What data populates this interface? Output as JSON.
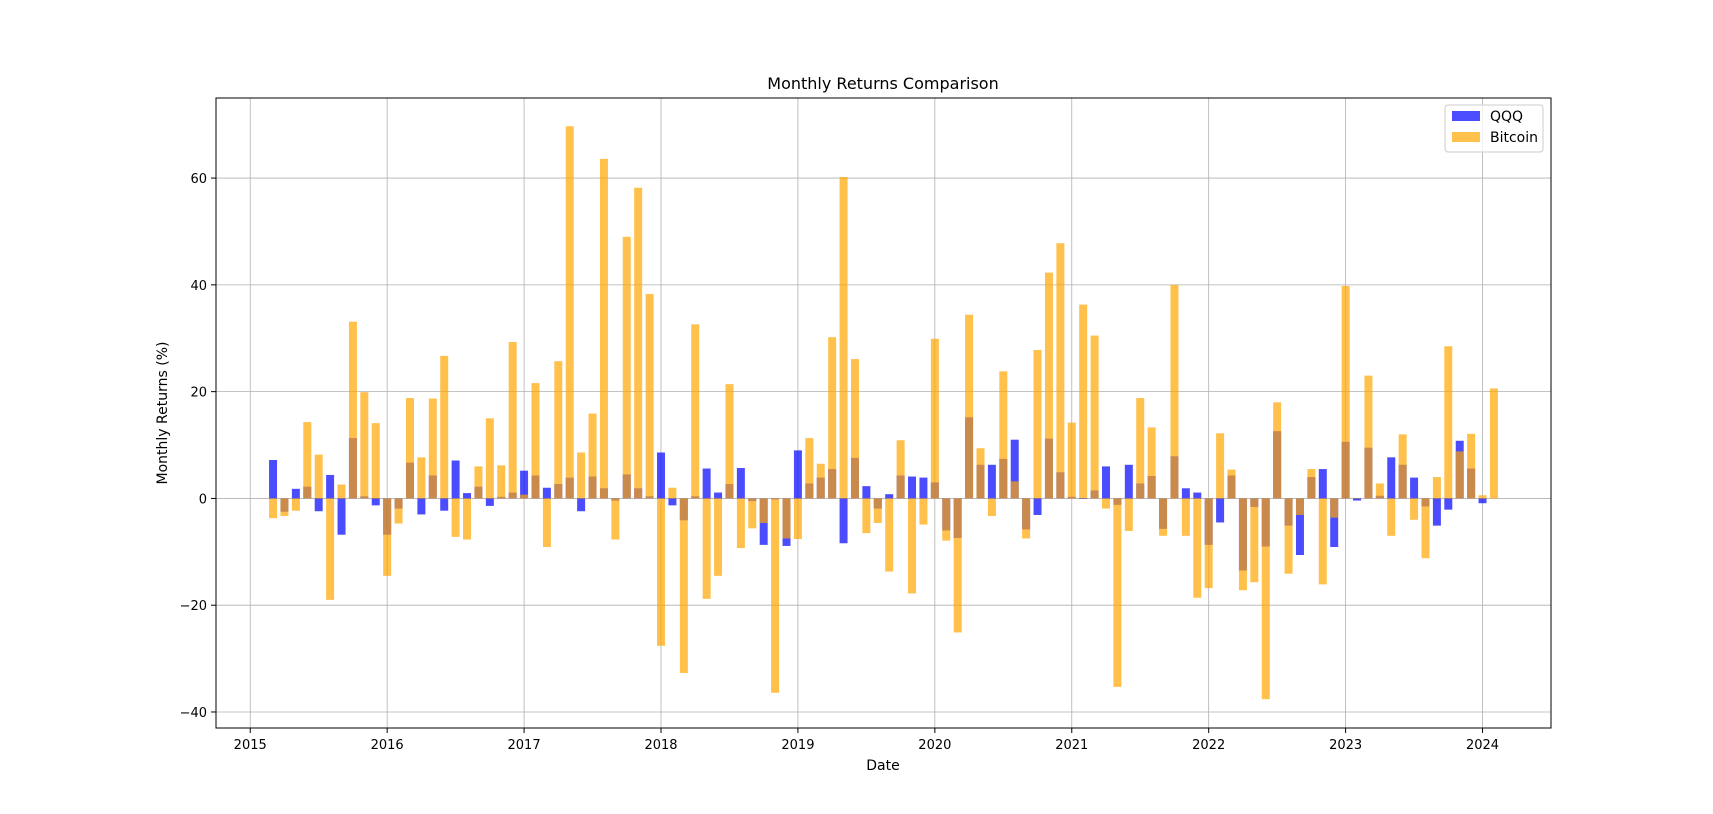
{
  "chart_data": {
    "type": "bar",
    "title": "Monthly Returns Comparison",
    "xlabel": "Date",
    "ylabel": "Monthly Returns (%)",
    "grid": true,
    "legend_position": "top-right",
    "x_tick_labels": [
      "2015",
      "2016",
      "2017",
      "2018",
      "2019",
      "2020",
      "2021",
      "2022",
      "2023",
      "2024"
    ],
    "y_ticks": [
      -40,
      -20,
      0,
      20,
      40,
      60
    ],
    "xlim": [
      "2014-10",
      "2024-07"
    ],
    "ylim": [
      -43,
      75
    ],
    "x": [
      "2015-03",
      "2015-04",
      "2015-05",
      "2015-06",
      "2015-07",
      "2015-08",
      "2015-09",
      "2015-10",
      "2015-11",
      "2015-12",
      "2016-01",
      "2016-02",
      "2016-03",
      "2016-04",
      "2016-05",
      "2016-06",
      "2016-07",
      "2016-08",
      "2016-09",
      "2016-10",
      "2016-11",
      "2016-12",
      "2017-01",
      "2017-02",
      "2017-03",
      "2017-04",
      "2017-05",
      "2017-06",
      "2017-07",
      "2017-08",
      "2017-09",
      "2017-10",
      "2017-11",
      "2017-12",
      "2018-01",
      "2018-02",
      "2018-03",
      "2018-04",
      "2018-05",
      "2018-06",
      "2018-07",
      "2018-08",
      "2018-09",
      "2018-10",
      "2018-11",
      "2018-12",
      "2019-01",
      "2019-02",
      "2019-03",
      "2019-04",
      "2019-05",
      "2019-06",
      "2019-07",
      "2019-08",
      "2019-09",
      "2019-10",
      "2019-11",
      "2019-12",
      "2020-01",
      "2020-02",
      "2020-03",
      "2020-04",
      "2020-05",
      "2020-06",
      "2020-07",
      "2020-08",
      "2020-09",
      "2020-10",
      "2020-11",
      "2020-12",
      "2021-01",
      "2021-02",
      "2021-03",
      "2021-04",
      "2021-05",
      "2021-06",
      "2021-07",
      "2021-08",
      "2021-09",
      "2021-10",
      "2021-11",
      "2021-12",
      "2022-01",
      "2022-02",
      "2022-03",
      "2022-04",
      "2022-05",
      "2022-06",
      "2022-07",
      "2022-08",
      "2022-09",
      "2022-10",
      "2022-11",
      "2022-12",
      "2023-01",
      "2023-02",
      "2023-03",
      "2023-04",
      "2023-05",
      "2023-06",
      "2023-07",
      "2023-08",
      "2023-09",
      "2023-10",
      "2023-11",
      "2023-12",
      "2024-01",
      "2024-02",
      "2024-03"
    ],
    "series": [
      {
        "name": "QQQ",
        "color": "#0000ff",
        "opacity": 0.7,
        "values": [
          7.2,
          -2.5,
          1.8,
          2.2,
          -2.4,
          4.4,
          -6.8,
          11.3,
          0.4,
          -1.3,
          -6.8,
          -1.9,
          6.7,
          -3.0,
          4.3,
          -2.3,
          7.1,
          1.0,
          2.2,
          -1.4,
          0.3,
          1.1,
          5.2,
          4.3,
          2.0,
          2.7,
          3.9,
          -2.4,
          4.1,
          1.9,
          -0.4,
          4.5,
          1.9,
          0.4,
          8.6,
          -1.3,
          -4.1,
          0.4,
          5.6,
          1.1,
          2.7,
          5.7,
          -0.5,
          -8.7,
          -0.2,
          -8.9,
          9.0,
          2.8,
          3.9,
          5.5,
          -8.4,
          7.6,
          2.3,
          -1.9,
          0.8,
          4.3,
          4.1,
          3.9,
          3.0,
          -6.0,
          -7.4,
          15.2,
          6.3,
          6.3,
          7.4,
          11.0,
          -5.8,
          -3.1,
          11.2,
          4.9,
          0.3,
          -0.1,
          1.5,
          6.0,
          -1.2,
          6.3,
          2.8,
          4.2,
          -5.7,
          7.9,
          1.9,
          1.1,
          -8.7,
          -4.5,
          4.3,
          -13.5,
          -1.6,
          -9.0,
          12.6,
          -5.1,
          -10.6,
          4.0,
          5.5,
          -9.1,
          10.6,
          -0.4,
          9.5,
          0.5,
          7.7,
          6.3,
          3.9,
          -1.5,
          -5.1,
          -2.1,
          10.8,
          5.6,
          -0.9,
          null,
          null
        ]
      },
      {
        "name": "Bitcoin",
        "color": "#ffa500",
        "opacity": 0.7,
        "values": [
          -3.7,
          -3.3,
          -2.3,
          14.3,
          8.2,
          -19.0,
          2.6,
          33.1,
          19.9,
          14.1,
          -14.5,
          -4.7,
          18.8,
          7.7,
          18.7,
          26.7,
          -7.2,
          -7.7,
          6.0,
          15.0,
          6.2,
          29.3,
          0.7,
          21.6,
          -9.1,
          25.7,
          69.7,
          8.6,
          15.9,
          63.6,
          -7.7,
          49.0,
          58.2,
          38.3,
          -27.6,
          2.0,
          -32.7,
          32.6,
          -18.8,
          -14.5,
          21.4,
          -9.3,
          -5.6,
          -4.6,
          -36.4,
          -7.5,
          -7.6,
          11.3,
          6.5,
          30.2,
          60.2,
          26.1,
          -6.5,
          -4.6,
          -13.7,
          10.9,
          -17.8,
          -4.9,
          29.9,
          -7.9,
          -25.1,
          34.4,
          9.4,
          -3.3,
          23.8,
          3.2,
          -7.5,
          27.8,
          42.3,
          47.8,
          14.2,
          36.3,
          30.5,
          -1.9,
          -35.3,
          -6.1,
          18.8,
          13.3,
          -7.0,
          40.0,
          -7.0,
          -18.6,
          -16.8,
          12.2,
          5.4,
          -17.2,
          -15.7,
          -37.6,
          18.0,
          -14.1,
          -3.1,
          5.5,
          -16.1,
          -3.6,
          39.8,
          0.1,
          23.0,
          2.8,
          -7.0,
          12.0,
          -4.0,
          -11.2,
          4.0,
          28.5,
          8.8,
          12.1,
          0.6,
          20.6,
          null
        ]
      }
    ]
  }
}
